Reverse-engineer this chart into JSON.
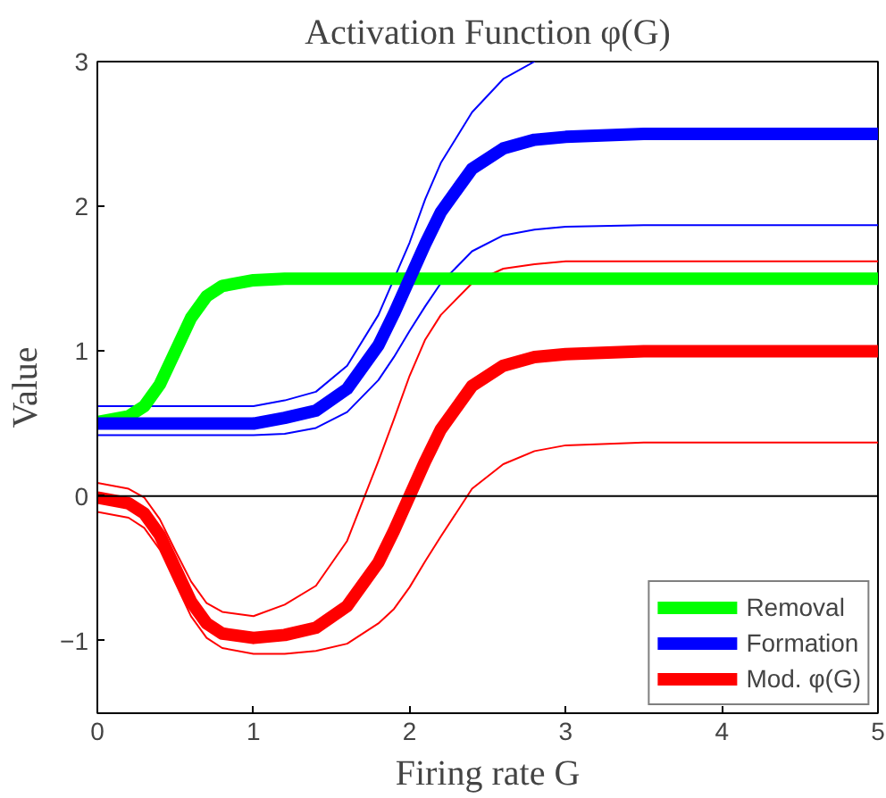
{
  "chart_data": {
    "type": "line",
    "title": "Activation Function φ(G)",
    "xlabel": "Firing rate G",
    "ylabel": "Value",
    "x": [
      0,
      0.2,
      0.3,
      0.4,
      0.5,
      0.6,
      0.7,
      0.8,
      1,
      1.2,
      1.4,
      1.6,
      1.8,
      1.9,
      2,
      2.1,
      2.2,
      2.4,
      2.6,
      2.8,
      3,
      3.5,
      4,
      5
    ],
    "series": [
      {
        "color": "#0000ff",
        "values": [
          0.62,
          0.62,
          0.62,
          0.62,
          0.62,
          0.62,
          0.62,
          0.62,
          0.62,
          0.66,
          0.72,
          0.9,
          1.25,
          1.5,
          1.75,
          2.05,
          2.3,
          2.65,
          2.88,
          3.0,
          null,
          null,
          null,
          null
        ]
      },
      {
        "color": "#0000ff",
        "values": [
          0.42,
          0.42,
          0.42,
          0.42,
          0.42,
          0.42,
          0.42,
          0.42,
          0.42,
          0.43,
          0.47,
          0.58,
          0.8,
          0.96,
          1.14,
          1.31,
          1.47,
          1.69,
          1.8,
          1.84,
          1.86,
          1.87,
          1.87,
          1.87
        ]
      },
      {
        "color": "#ff0000",
        "values": [
          0.09,
          0.05,
          -0.01,
          -0.16,
          -0.38,
          -0.59,
          -0.74,
          -0.8,
          -0.83,
          -0.75,
          -0.62,
          -0.31,
          0.24,
          0.53,
          0.83,
          1.08,
          1.25,
          1.47,
          1.57,
          1.6,
          1.62,
          1.62,
          1.62,
          1.62
        ]
      },
      {
        "color": "#ff0000",
        "values": [
          -0.11,
          -0.15,
          -0.22,
          -0.37,
          -0.6,
          -0.83,
          -0.98,
          -1.05,
          -1.09,
          -1.09,
          -1.07,
          -1.02,
          -0.88,
          -0.78,
          -0.63,
          -0.45,
          -0.28,
          0.05,
          0.22,
          0.31,
          0.35,
          0.37,
          0.37,
          0.37
        ]
      },
      {
        "name": "Removal",
        "color": "#00ff00",
        "values": [
          0.51,
          0.55,
          0.62,
          0.77,
          1.0,
          1.23,
          1.38,
          1.45,
          1.49,
          1.5,
          1.5,
          1.5,
          1.5,
          1.5,
          1.5,
          1.5,
          1.5,
          1.5,
          1.5,
          1.5,
          1.5,
          1.5,
          1.5,
          1.5
        ]
      },
      {
        "name": "Formation",
        "color": "#0000ff",
        "values": [
          0.5,
          0.5,
          0.5,
          0.5,
          0.5,
          0.5,
          0.5,
          0.5,
          0.5,
          0.54,
          0.59,
          0.74,
          1.04,
          1.26,
          1.5,
          1.74,
          1.96,
          2.26,
          2.4,
          2.46,
          2.48,
          2.5,
          2.5,
          2.5
        ]
      },
      {
        "name": "Mod. φ(G)",
        "color": "#ff0000",
        "values": [
          -0.01,
          -0.05,
          -0.12,
          -0.27,
          -0.5,
          -0.73,
          -0.88,
          -0.95,
          -0.98,
          -0.96,
          -0.91,
          -0.76,
          -0.46,
          -0.24,
          0,
          0.24,
          0.46,
          0.76,
          0.9,
          0.96,
          0.98,
          1,
          1,
          1
        ]
      }
    ],
    "xlim": [
      0,
      5
    ],
    "xticks": [
      0,
      1,
      2,
      3,
      4,
      5
    ],
    "ylim": [
      -1.5,
      3
    ],
    "yticks": [
      -1,
      0,
      1,
      2,
      3
    ],
    "ref_lines": [
      {
        "axis": "y",
        "value": 0,
        "color": "#000000"
      }
    ],
    "grid": false,
    "legend": "bottom right",
    "marker": "none",
    "line_style": "solid"
  }
}
